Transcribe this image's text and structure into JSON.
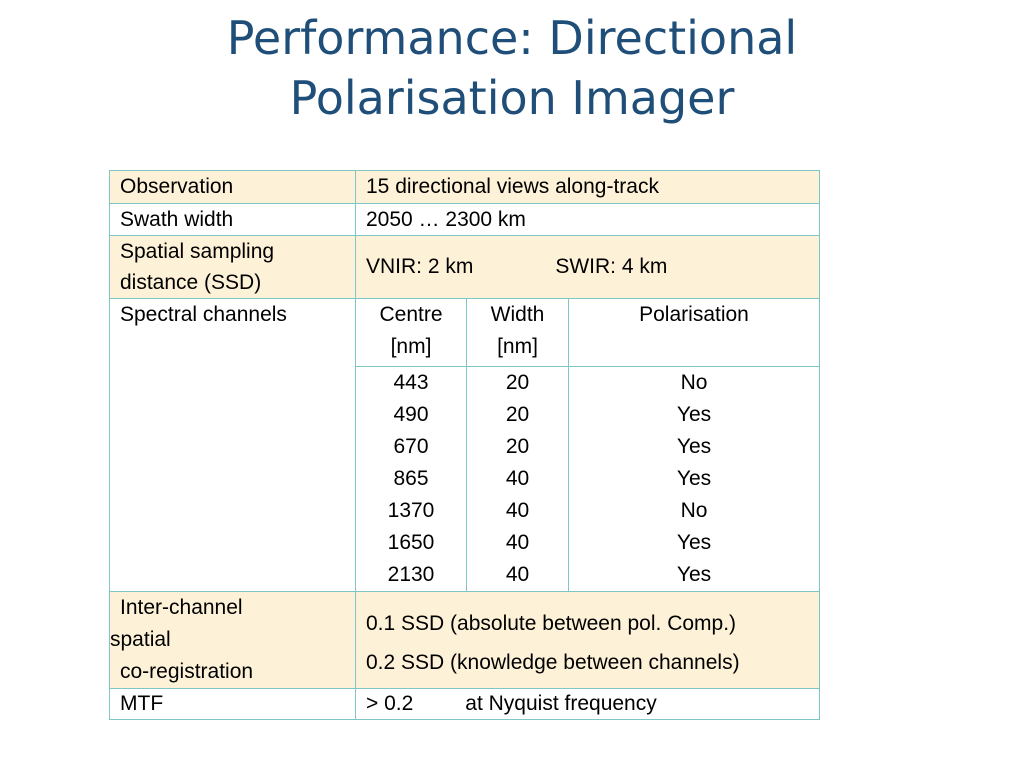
{
  "title": {
    "line1": "Performance: Directional",
    "line2": "Polarisation Imager"
  },
  "rows": {
    "observation": {
      "label": "Observation",
      "value": "15 directional views along-track"
    },
    "swath": {
      "label": "Swath width",
      "value": "2050 … 2300 km"
    },
    "ssd": {
      "label_line1": "Spatial sampling",
      "label_line2": "distance (SSD)",
      "vnir": "VNIR: 2 km",
      "swir": "SWIR: 4 km"
    },
    "spectral": {
      "label": "Spectral channels",
      "headers": {
        "centre_line1": "Centre",
        "centre_line2": "[nm]",
        "width_line1": "Width",
        "width_line2": "[nm]",
        "polarisation": "Polarisation"
      },
      "channels": [
        {
          "centre": "443",
          "width": "20",
          "polarisation": "No"
        },
        {
          "centre": "490",
          "width": "20",
          "polarisation": "Yes"
        },
        {
          "centre": "670",
          "width": "20",
          "polarisation": "Yes"
        },
        {
          "centre": "865",
          "width": "40",
          "polarisation": "Yes"
        },
        {
          "centre": "1370",
          "width": "40",
          "polarisation": "No"
        },
        {
          "centre": "1650",
          "width": "40",
          "polarisation": "Yes"
        },
        {
          "centre": "2130",
          "width": "40",
          "polarisation": "Yes"
        }
      ]
    },
    "coreg": {
      "label_line1": "Inter-channel",
      "label_line2": "spatial",
      "label_line3": "co-registration",
      "value_line1": "0.1 SSD (absolute between pol. Comp.)",
      "value_line2": "0.2 SSD (knowledge between channels)"
    },
    "mtf": {
      "label": "MTF",
      "value_main": "> 0.2",
      "value_note": "at Nyquist frequency"
    }
  }
}
